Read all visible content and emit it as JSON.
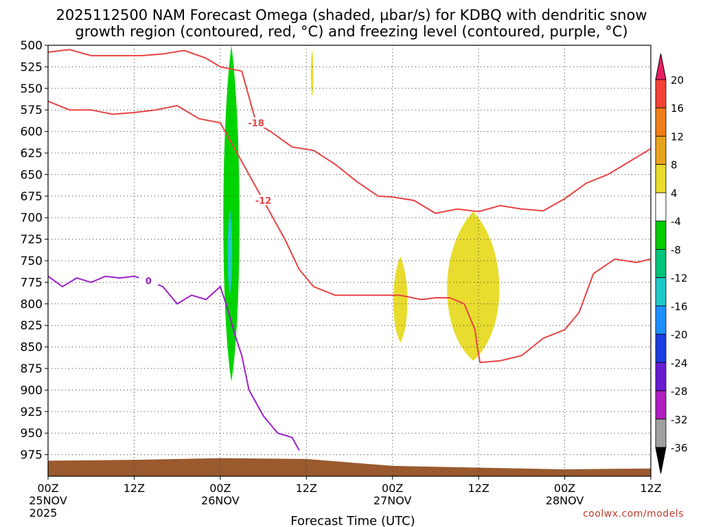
{
  "title_line1": "2025112500 NAM Forecast Omega (shaded, µbar/s) for KDBQ with dendritic snow",
  "title_line2": "growth region (contoured, red, °C) and freezing level (contoured, purple, °C)",
  "credit": "coolwx.com/models",
  "chart_data": {
    "type": "time-height cross section",
    "xlabel": "Forecast Time (UTC)",
    "ylabel": "",
    "x_hours_range": [
      0,
      84
    ],
    "y_range": [
      500,
      1000
    ],
    "y_scale": "linear (pressure, hPa) increasing downward",
    "y_ticks": [
      500,
      525,
      550,
      575,
      600,
      625,
      650,
      675,
      700,
      725,
      750,
      775,
      800,
      825,
      850,
      875,
      900,
      925,
      950,
      975
    ],
    "x_ticks": [
      {
        "hour": 0,
        "label": "00Z",
        "date": "25NOV",
        "year": "2025"
      },
      {
        "hour": 12,
        "label": "12Z",
        "date": "",
        "year": ""
      },
      {
        "hour": 24,
        "label": "00Z",
        "date": "26NOV",
        "year": ""
      },
      {
        "hour": 36,
        "label": "12Z",
        "date": "",
        "year": ""
      },
      {
        "hour": 48,
        "label": "00Z",
        "date": "27NOV",
        "year": ""
      },
      {
        "hour": 60,
        "label": "12Z",
        "date": "",
        "year": ""
      },
      {
        "hour": 72,
        "label": "00Z",
        "date": "28NOV",
        "year": ""
      },
      {
        "hour": 84,
        "label": "12Z",
        "date": "",
        "year": ""
      }
    ],
    "grid": true,
    "colorbar": {
      "position": "right",
      "labels": [
        "20",
        "16",
        "12",
        "8",
        "4",
        "-4",
        "-8",
        "-12",
        "-16",
        "-20",
        "-24",
        "-28",
        "-32",
        "-36"
      ],
      "colors": [
        "#e91e63",
        "#f44336",
        "#ef7f1a",
        "#e8a31e",
        "#e8dc2e",
        "#ffffff",
        "#00cc00",
        "#00c47a",
        "#1fc8c8",
        "#1e90ff",
        "#1c3ee0",
        "#6a1bd1",
        "#b01fbf",
        "#a0a0a0",
        "#000000"
      ]
    },
    "omega_shading": [
      {
        "level": "-4 to -8",
        "color": "#00d400",
        "hours": [
          24.3,
          26.8
        ],
        "pressure": [
          500,
          890
        ]
      },
      {
        "level": "-12 to -16",
        "color": "#1fc8c8",
        "hours": [
          25.0,
          25.7
        ],
        "pressure": [
          690,
          790
        ]
      },
      {
        "level": "4 to 8",
        "color": "#e8dc2e",
        "hours": [
          36.6,
          37.0
        ],
        "pressure": [
          505,
          560
        ]
      },
      {
        "level": "4 to 8",
        "color": "#e8dc2e",
        "hours": [
          48.0,
          50.2
        ],
        "pressure": [
          745,
          845
        ]
      },
      {
        "level": "4 to 8",
        "color": "#e8dc2e",
        "hours": [
          55.2,
          63.3
        ],
        "pressure": [
          693,
          866
        ]
      }
    ],
    "contours": [
      {
        "label": "-18",
        "color": "#e84242",
        "hours": [
          0,
          3,
          6,
          10,
          13,
          16,
          19,
          22,
          24,
          27,
          29,
          31,
          34,
          37,
          40,
          43,
          46,
          48,
          51,
          54,
          57,
          60,
          63,
          66,
          69,
          72,
          75,
          78,
          81,
          84
        ],
        "pressure": [
          508,
          505,
          512,
          512,
          512,
          510,
          506,
          515,
          525,
          530,
          590,
          600,
          618,
          622,
          638,
          658,
          675,
          676,
          680,
          695,
          690,
          693,
          686,
          690,
          692,
          678,
          660,
          650,
          635,
          620
        ]
      },
      {
        "label": "-12",
        "color": "#e84242",
        "hours": [
          0,
          3,
          6,
          9,
          12,
          15,
          18,
          21,
          24,
          26,
          28,
          30,
          33,
          35,
          37,
          40,
          43,
          46,
          49,
          52,
          54,
          56,
          58,
          59.5,
          59.8,
          60.2,
          63,
          66,
          69,
          72,
          74,
          76,
          79,
          82,
          84
        ],
        "pressure": [
          565,
          575,
          575,
          580,
          578,
          575,
          570,
          585,
          590,
          620,
          650,
          680,
          725,
          760,
          780,
          790,
          790,
          790,
          790,
          795,
          793,
          793,
          800,
          830,
          850,
          868,
          866,
          860,
          840,
          830,
          810,
          765,
          748,
          752,
          748
        ]
      },
      {
        "label": "0",
        "color": "#9c1fc8",
        "hours": [
          0,
          2,
          4,
          6,
          8,
          10,
          12,
          14,
          16,
          18,
          20,
          22,
          24,
          25,
          26,
          27,
          28,
          30,
          32,
          34,
          35
        ],
        "pressure": [
          768,
          780,
          770,
          775,
          768,
          770,
          768,
          773,
          780,
          800,
          790,
          795,
          780,
          805,
          835,
          860,
          900,
          930,
          950,
          955,
          970
        ]
      }
    ],
    "terrain_label": "",
    "terrain_color": "#9a5a2e"
  }
}
